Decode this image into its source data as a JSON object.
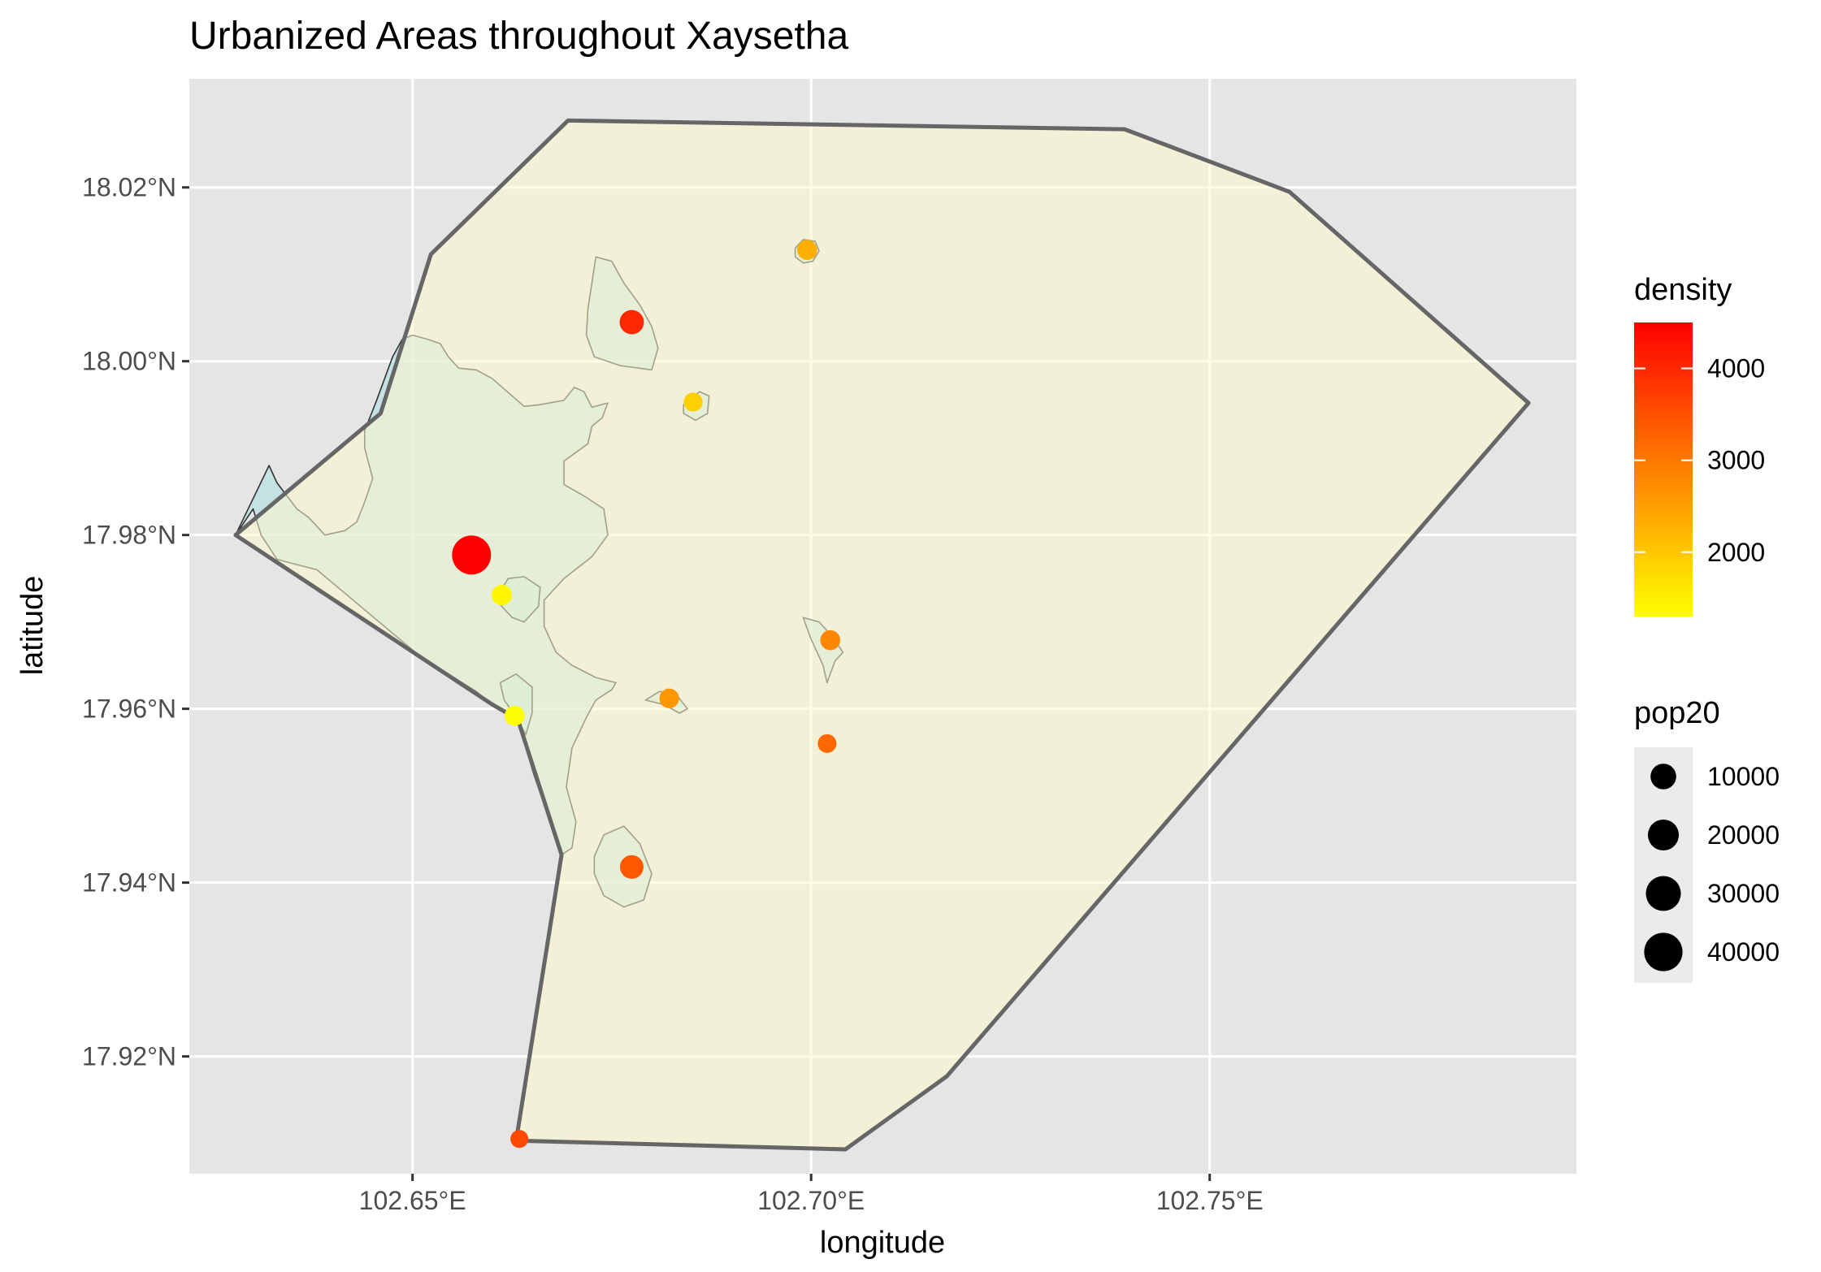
{
  "title": "Urbanized Areas throughout Xaysetha",
  "axes": {
    "xlabel": "longitude",
    "ylabel": "latitude",
    "xlim": [
      102.622,
      102.796
    ],
    "ylim": [
      17.9065,
      18.0325
    ],
    "x_ticks": [
      {
        "value": 102.65,
        "label": "102.65°E"
      },
      {
        "value": 102.7,
        "label": "102.70°E"
      },
      {
        "value": 102.75,
        "label": "102.75°E"
      }
    ],
    "y_ticks": [
      {
        "value": 18.02,
        "label": "18.02°N"
      },
      {
        "value": 18.0,
        "label": "18.00°N"
      },
      {
        "value": 17.98,
        "label": "17.98°N"
      },
      {
        "value": 17.96,
        "label": "17.96°N"
      },
      {
        "value": 17.94,
        "label": "17.94°N"
      },
      {
        "value": 17.92,
        "label": "17.92°N"
      }
    ],
    "grid": true
  },
  "colors": {
    "panel_bg": "#e5e5e5",
    "grid": "#ffffff",
    "district_fill": "#fffacd",
    "district_fill_opacity": 0.55,
    "district_stroke": "#666666",
    "urban_fill": "#b0dde0",
    "urban_fill_opacity": 0.6,
    "urban_stroke": "#333333",
    "density_low": "#ffff00",
    "density_high": "#ff0000"
  },
  "legend": {
    "position": "right",
    "density": {
      "title": "density",
      "min": 1300,
      "max": 4500,
      "breaks": [
        4000,
        3000,
        2000
      ]
    },
    "pop20": {
      "title": "pop20",
      "breaks": [
        10000,
        20000,
        30000,
        40000
      ]
    }
  },
  "chart_data": {
    "type": "scatter",
    "title": "Urbanized Areas throughout Xaysetha",
    "xlabel": "longitude",
    "ylabel": "latitude",
    "district_boundary": [
      [
        102.6278,
        17.98
      ],
      [
        102.646,
        17.994
      ],
      [
        102.6523,
        18.0123
      ],
      [
        102.6695,
        18.0277
      ],
      [
        102.7393,
        18.0267
      ],
      [
        102.76,
        18.0195
      ],
      [
        102.79,
        17.9952
      ],
      [
        102.717,
        17.9177
      ],
      [
        102.7043,
        17.9093
      ],
      [
        102.663,
        17.9103
      ],
      [
        102.6687,
        17.9432
      ],
      [
        102.6632,
        17.9588
      ],
      [
        102.66,
        17.9605
      ],
      [
        102.6278,
        17.98
      ]
    ],
    "urban_areas": [
      [
        [
          102.6278,
          17.98
        ],
        [
          102.63,
          17.983
        ],
        [
          102.631,
          17.98
        ],
        [
          102.633,
          17.9772
        ],
        [
          102.638,
          17.976
        ],
        [
          102.651,
          17.966
        ],
        [
          102.658,
          17.962
        ],
        [
          102.66,
          17.9605
        ],
        [
          102.6632,
          17.9588
        ],
        [
          102.6652,
          17.9525
        ],
        [
          102.6687,
          17.9432
        ],
        [
          102.67,
          17.944
        ],
        [
          102.6705,
          17.947
        ],
        [
          102.6693,
          17.951
        ],
        [
          102.67,
          17.9555
        ],
        [
          102.6718,
          17.959
        ],
        [
          102.673,
          17.961
        ],
        [
          102.675,
          17.9622
        ],
        [
          102.6755,
          17.963
        ],
        [
          102.673,
          17.9636
        ],
        [
          102.67,
          17.965
        ],
        [
          102.668,
          17.9665
        ],
        [
          102.6665,
          17.9695
        ],
        [
          102.6665,
          17.9725
        ],
        [
          102.669,
          17.975
        ],
        [
          102.6725,
          17.9775
        ],
        [
          102.6745,
          17.98
        ],
        [
          102.674,
          17.983
        ],
        [
          102.6715,
          17.9845
        ],
        [
          102.669,
          17.9858
        ],
        [
          102.669,
          17.9885
        ],
        [
          102.672,
          17.9905
        ],
        [
          102.6725,
          17.9925
        ],
        [
          102.6738,
          17.9935
        ],
        [
          102.6745,
          17.9952
        ],
        [
          102.6725,
          17.9947
        ],
        [
          102.6715,
          17.9965
        ],
        [
          102.6703,
          17.997
        ],
        [
          102.669,
          17.9955
        ],
        [
          102.666,
          17.995
        ],
        [
          102.664,
          17.9948
        ],
        [
          102.6625,
          17.996
        ],
        [
          102.66,
          17.998
        ],
        [
          102.658,
          17.999
        ],
        [
          102.6558,
          17.9992
        ],
        [
          102.6545,
          18.0005
        ],
        [
          102.6535,
          18.002
        ],
        [
          102.652,
          18.0025
        ],
        [
          102.65,
          18.003
        ],
        [
          102.6487,
          18.0025
        ],
        [
          102.6475,
          18.0005
        ],
        [
          102.6455,
          17.9955
        ],
        [
          102.644,
          17.992
        ],
        [
          102.644,
          17.99
        ],
        [
          102.645,
          17.9865
        ],
        [
          102.644,
          17.9838
        ],
        [
          102.643,
          17.9815
        ],
        [
          102.6415,
          17.9805
        ],
        [
          102.639,
          17.98
        ],
        [
          102.637,
          17.982
        ],
        [
          102.6355,
          17.983
        ],
        [
          102.633,
          17.986
        ],
        [
          102.632,
          17.988
        ],
        [
          102.6278,
          17.98
        ]
      ],
      [
        [
          102.672,
          18.006
        ],
        [
          102.673,
          18.012
        ],
        [
          102.675,
          18.0115
        ],
        [
          102.6765,
          18.009
        ],
        [
          102.6785,
          18.0065
        ],
        [
          102.68,
          18.004
        ],
        [
          102.6808,
          18.0015
        ],
        [
          102.68,
          17.999
        ],
        [
          102.676,
          17.9995
        ],
        [
          102.6728,
          18.0005
        ],
        [
          102.6718,
          18.003
        ],
        [
          102.672,
          18.006
        ]
      ],
      [
        [
          102.6728,
          17.943
        ],
        [
          102.674,
          17.9455
        ],
        [
          102.6765,
          17.9465
        ],
        [
          102.6785,
          17.9445
        ],
        [
          102.68,
          17.941
        ],
        [
          102.679,
          17.938
        ],
        [
          102.6765,
          17.9372
        ],
        [
          102.674,
          17.9385
        ],
        [
          102.6728,
          17.941
        ],
        [
          102.6728,
          17.943
        ]
      ],
      [
        [
          102.661,
          17.9735
        ],
        [
          102.662,
          17.975
        ],
        [
          102.664,
          17.9752
        ],
        [
          102.666,
          17.974
        ],
        [
          102.6658,
          17.9718
        ],
        [
          102.664,
          17.97
        ],
        [
          102.6625,
          17.9705
        ],
        [
          102.661,
          17.972
        ],
        [
          102.661,
          17.9735
        ]
      ],
      [
        [
          102.698,
          18.013
        ],
        [
          102.699,
          18.014
        ],
        [
          102.7005,
          18.0138
        ],
        [
          102.701,
          18.0127
        ],
        [
          102.7002,
          18.0115
        ],
        [
          102.699,
          18.0113
        ],
        [
          102.698,
          18.012
        ],
        [
          102.698,
          18.013
        ]
      ],
      [
        [
          102.684,
          17.995
        ],
        [
          102.686,
          17.9965
        ],
        [
          102.6872,
          17.996
        ],
        [
          102.687,
          17.994
        ],
        [
          102.6855,
          17.9932
        ],
        [
          102.684,
          17.994
        ],
        [
          102.684,
          17.995
        ]
      ],
      [
        [
          102.699,
          17.9705
        ],
        [
          102.701,
          17.97
        ],
        [
          102.7025,
          17.9685
        ],
        [
          102.704,
          17.9665
        ],
        [
          102.703,
          17.9655
        ],
        [
          102.702,
          17.963
        ],
        [
          102.7015,
          17.965
        ],
        [
          102.7,
          17.968
        ],
        [
          102.699,
          17.9705
        ]
      ],
      [
        [
          102.6792,
          17.961
        ],
        [
          102.681,
          17.962
        ],
        [
          102.6832,
          17.9615
        ],
        [
          102.6845,
          17.96
        ],
        [
          102.6835,
          17.9595
        ],
        [
          102.6815,
          17.9605
        ],
        [
          102.6792,
          17.961
        ]
      ],
      [
        [
          102.661,
          17.963
        ],
        [
          102.663,
          17.964
        ],
        [
          102.665,
          17.9625
        ],
        [
          102.665,
          17.9595
        ],
        [
          102.6642,
          17.957
        ],
        [
          102.6632,
          17.9588
        ],
        [
          102.6615,
          17.961
        ],
        [
          102.661,
          17.963
        ]
      ]
    ],
    "points": [
      {
        "x": 102.6574,
        "y": 17.9777,
        "pop20": 42000,
        "density": 4500
      },
      {
        "x": 102.6775,
        "y": 18.0045,
        "pop20": 8000,
        "density": 4000
      },
      {
        "x": 102.6612,
        "y": 17.9731,
        "pop20": 3500,
        "density": 1400
      },
      {
        "x": 102.6775,
        "y": 17.9418,
        "pop20": 7000,
        "density": 3400
      },
      {
        "x": 102.6995,
        "y": 18.0128,
        "pop20": 3000,
        "density": 2300
      },
      {
        "x": 102.6852,
        "y": 17.9953,
        "pop20": 2200,
        "density": 1900
      },
      {
        "x": 102.7024,
        "y": 17.9679,
        "pop20": 3000,
        "density": 2800
      },
      {
        "x": 102.6822,
        "y": 17.9612,
        "pop20": 2800,
        "density": 2600
      },
      {
        "x": 102.6628,
        "y": 17.9592,
        "pop20": 3000,
        "density": 1300
      },
      {
        "x": 102.702,
        "y": 17.956,
        "pop20": 2000,
        "density": 3200
      },
      {
        "x": 102.6634,
        "y": 17.9105,
        "pop20": 1500,
        "density": 3600
      }
    ]
  }
}
